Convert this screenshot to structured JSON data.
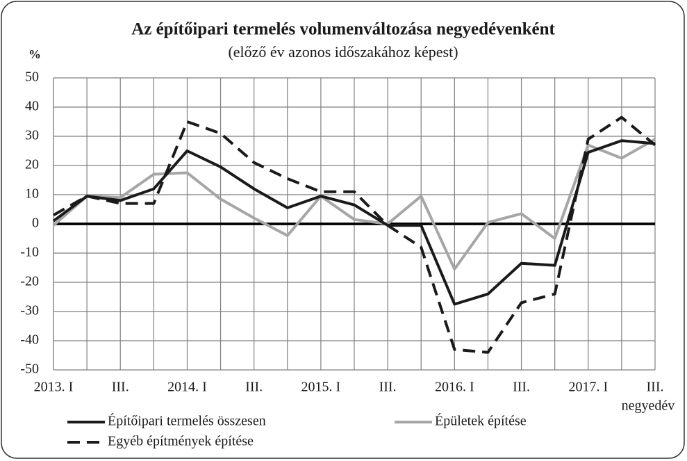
{
  "chart_data": {
    "type": "line",
    "title": "Az építőipari termelés volumenváltozása negyedévenként",
    "subtitle": "(előző év azonos időszakához képest)",
    "y_label": "%",
    "x_label": "negyedév",
    "categories": [
      "2013. I",
      null,
      "III.",
      null,
      "2014. I",
      null,
      "III.",
      null,
      "2015. I",
      null,
      "III.",
      null,
      "2016. I",
      null,
      "III.",
      null,
      "2017. I",
      null,
      "III."
    ],
    "series": [
      {
        "name": "Építőipari termelés összesen",
        "color": "#1a1a1a",
        "dash": false,
        "values": [
          1,
          9.5,
          8,
          12,
          25,
          19.5,
          12,
          5.5,
          9.5,
          6.5,
          -0.5,
          -0.5,
          -27.5,
          -24,
          -13.5,
          -14.2,
          24.5,
          28.5,
          27.5
        ]
      },
      {
        "name": "Épületek építése",
        "color": "#a6a6a6",
        "dash": false,
        "values": [
          -0.5,
          9.5,
          9,
          17,
          17.5,
          8.5,
          2,
          -4,
          9.5,
          1.5,
          0,
          9.5,
          -15.5,
          0.5,
          3.5,
          -5,
          27,
          22.5,
          29
        ]
      },
      {
        "name": "Egyéb építmények építése",
        "color": "#1a1a1a",
        "dash": true,
        "values": [
          3,
          9.5,
          7,
          7,
          35,
          31,
          21,
          15.5,
          11,
          11,
          -0.5,
          -8,
          -43,
          -44,
          -27,
          -24,
          29,
          36.5,
          27
        ]
      }
    ],
    "ylim": [
      -50,
      50
    ],
    "yticks": [
      -50,
      -40,
      -30,
      -20,
      -10,
      0,
      10,
      20,
      30,
      40,
      50
    ],
    "grid": true,
    "legend": "bottom"
  }
}
